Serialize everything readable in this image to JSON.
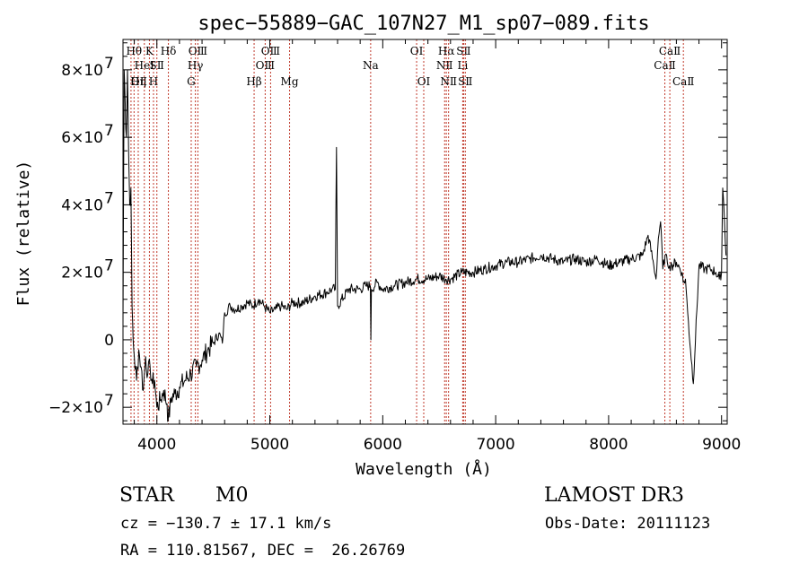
{
  "chart_data": {
    "type": "line",
    "title": "spec−55889−GAC_107N27_M1_sp07−089.fits",
    "xlabel": "Wavelength (Å)",
    "ylabel": "Flux (relative)",
    "xlim": [
      3700,
      9050
    ],
    "ylim": [
      -25000000,
      89000000
    ],
    "x_ticks": [
      4000,
      5000,
      6000,
      7000,
      8000,
      9000
    ],
    "x_tick_labels": [
      "4000",
      "5000",
      "6000",
      "7000",
      "8000",
      "9000"
    ],
    "y_ticks": [
      -20000000,
      0,
      20000000,
      40000000,
      60000000,
      80000000
    ],
    "y_tick_labels": [
      "−2×10",
      "0",
      "2×10",
      "4×10",
      "6×10",
      "8×10"
    ],
    "y_tick_exponent": "7",
    "line_color": "#000000",
    "marker_color": "#c0392b",
    "series": [
      {
        "name": "spectrum",
        "x": [
          3700,
          3710,
          3720,
          3730,
          3740,
          3750,
          3760,
          3770,
          3780,
          3790,
          3800,
          3820,
          3840,
          3860,
          3880,
          3900,
          3920,
          3940,
          3960,
          3980,
          4000,
          4030,
          4060,
          4090,
          4100,
          4130,
          4160,
          4200,
          4250,
          4300,
          4350,
          4400,
          4450,
          4500,
          4550,
          4580,
          4600,
          4650,
          4700,
          4750,
          4800,
          4850,
          4900,
          4950,
          5000,
          5050,
          5100,
          5150,
          5200,
          5300,
          5400,
          5500,
          5550,
          5580,
          5590,
          5600,
          5700,
          5800,
          5850,
          5890,
          5895,
          5900,
          5950,
          6000,
          6100,
          6200,
          6300,
          6400,
          6500,
          6560,
          6600,
          6700,
          6800,
          6900,
          7000,
          7100,
          7200,
          7300,
          7400,
          7500,
          7600,
          7700,
          7800,
          7900,
          8000,
          8100,
          8200,
          8300,
          8350,
          8400,
          8420,
          8440,
          8460,
          8480,
          8500,
          8520,
          8540,
          8560,
          8600,
          8650,
          8660,
          8680,
          8700,
          8750,
          8800,
          8850,
          8900,
          8950,
          8980,
          9000,
          9010,
          9020,
          9040
        ],
        "y": [
          5,
          80,
          70,
          60,
          80,
          55,
          40,
          45,
          10,
          0,
          -5,
          -12,
          -3,
          -8,
          -15,
          -5,
          -10,
          -8,
          -13,
          -12,
          -20,
          -18,
          -15,
          -19,
          -24,
          -17,
          -16,
          -14,
          -12,
          -10,
          -8,
          -6,
          -3,
          -1,
          2,
          -1,
          8,
          10,
          9,
          10,
          11,
          10,
          12,
          10,
          8,
          9,
          10,
          9,
          11,
          11,
          13,
          14,
          15,
          15,
          57,
          10,
          15,
          15,
          16,
          16,
          0,
          15,
          17,
          15,
          16,
          17,
          18,
          18,
          19,
          18,
          18,
          20,
          20,
          21,
          22,
          23,
          23,
          24,
          25,
          24,
          23,
          24,
          23,
          24,
          22,
          23,
          24,
          25,
          31,
          22,
          18,
          30,
          35,
          21,
          25,
          23,
          22,
          22,
          23,
          20,
          17,
          18,
          8,
          -13,
          22,
          21,
          21,
          20,
          18,
          20,
          45,
          40,
          25
        ],
        "units_note": "y values in units of 10^6 relative flux"
      }
    ],
    "y_scale": 1000000,
    "markers": [
      {
        "wl": 3771,
        "label": "OⅡ",
        "row": 3,
        "anchor": "start"
      },
      {
        "wl": 3798,
        "label": "Hθ",
        "row": 1,
        "anchor": "middle"
      },
      {
        "wl": 3835,
        "label": "Hη",
        "row": 3,
        "anchor": "middle"
      },
      {
        "wl": 3889,
        "label": "HeI",
        "row": 2,
        "anchor": "middle"
      },
      {
        "wl": 3934,
        "label": "K",
        "row": 1,
        "anchor": "middle"
      },
      {
        "wl": 3970,
        "label": "H",
        "row": 3,
        "anchor": "middle"
      },
      {
        "wl": 4000,
        "label": "SⅡ",
        "row": 2,
        "anchor": "middle"
      },
      {
        "wl": 4102,
        "label": "Hδ",
        "row": 1,
        "anchor": "middle"
      },
      {
        "wl": 4304,
        "label": "G",
        "row": 3,
        "anchor": "middle"
      },
      {
        "wl": 4341,
        "label": "Hγ",
        "row": 2,
        "anchor": "middle"
      },
      {
        "wl": 4363,
        "label": "OⅢ",
        "row": 1,
        "anchor": "middle"
      },
      {
        "wl": 4861,
        "label": "Hβ",
        "row": 3,
        "anchor": "middle"
      },
      {
        "wl": 4959,
        "label": "OⅢ",
        "row": 2,
        "anchor": "middle"
      },
      {
        "wl": 5007,
        "label": "OⅢ",
        "row": 1,
        "anchor": "middle"
      },
      {
        "wl": 5175,
        "label": "Mg",
        "row": 3,
        "anchor": "middle"
      },
      {
        "wl": 5893,
        "label": "Na",
        "row": 2,
        "anchor": "middle"
      },
      {
        "wl": 6300,
        "label": "OⅠ",
        "row": 1,
        "anchor": "middle"
      },
      {
        "wl": 6363,
        "label": "OⅠ",
        "row": 3,
        "anchor": "middle"
      },
      {
        "wl": 6548,
        "label": "NⅡ",
        "row": 2,
        "anchor": "middle"
      },
      {
        "wl": 6563,
        "label": "Hα",
        "row": 1,
        "anchor": "middle"
      },
      {
        "wl": 6583,
        "label": "NⅡ",
        "row": 3,
        "anchor": "middle"
      },
      {
        "wl": 6708,
        "label": "Li",
        "row": 2,
        "anchor": "middle"
      },
      {
        "wl": 6716,
        "label": "SⅡ",
        "row": 1,
        "anchor": "middle"
      },
      {
        "wl": 6731,
        "label": "SⅡ",
        "row": 3,
        "anchor": "middle"
      },
      {
        "wl": 8498,
        "label": "CaⅡ",
        "row": 2,
        "anchor": "middle"
      },
      {
        "wl": 8542,
        "label": "CaⅡ",
        "row": 1,
        "anchor": "middle"
      },
      {
        "wl": 8662,
        "label": "CaⅡ",
        "row": 3,
        "anchor": "middle"
      }
    ]
  },
  "info": {
    "class": "STAR",
    "subclass": "M0",
    "cz": "cz = −130.7 ± 17.1 km/s",
    "coords": "RA = 110.81567, DEC =  26.26769",
    "survey": "LAMOST DR3",
    "obs_date": "Obs-Date: 20111123"
  }
}
